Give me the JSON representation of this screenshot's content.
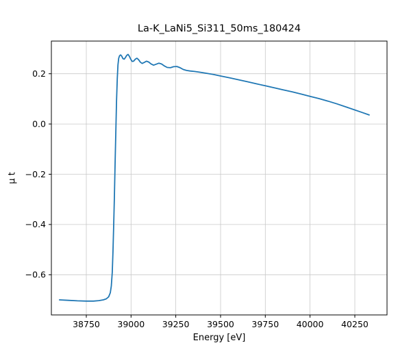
{
  "chart_data": {
    "type": "line",
    "title": "La-K_LaNi5_Si311_50ms_180424",
    "xlabel": "Energy [eV]",
    "ylabel": "μ t",
    "xlim": [
      38555,
      40430
    ],
    "ylim": [
      -0.76,
      0.33
    ],
    "grid": true,
    "legend": "none",
    "line_color": "#1f77b4",
    "background_color": "#ffffff",
    "grid_color": "#c8c8c8",
    "xticks": [
      {
        "v": 38750,
        "label": "38750"
      },
      {
        "v": 39000,
        "label": "39000"
      },
      {
        "v": 39250,
        "label": "39250"
      },
      {
        "v": 39500,
        "label": "39500"
      },
      {
        "v": 39750,
        "label": "39750"
      },
      {
        "v": 40000,
        "label": "40000"
      },
      {
        "v": 40250,
        "label": "40250"
      }
    ],
    "yticks": [
      {
        "v": 0.2,
        "label": "0.2"
      },
      {
        "v": 0.0,
        "label": "0.0"
      },
      {
        "v": -0.2,
        "label": "−0.2"
      },
      {
        "v": -0.4,
        "label": "−0.4"
      },
      {
        "v": -0.6,
        "label": "−0.6"
      }
    ],
    "series": [
      {
        "name": "mu_t_absorption",
        "points": [
          [
            38600,
            -0.7
          ],
          [
            38650,
            -0.702
          ],
          [
            38700,
            -0.704
          ],
          [
            38750,
            -0.705
          ],
          [
            38790,
            -0.705
          ],
          [
            38820,
            -0.703
          ],
          [
            38845,
            -0.7
          ],
          [
            38862,
            -0.696
          ],
          [
            38875,
            -0.688
          ],
          [
            38884,
            -0.672
          ],
          [
            38890,
            -0.645
          ],
          [
            38895,
            -0.59
          ],
          [
            38899,
            -0.51
          ],
          [
            38903,
            -0.41
          ],
          [
            38907,
            -0.29
          ],
          [
            38911,
            -0.16
          ],
          [
            38915,
            -0.03
          ],
          [
            38919,
            0.09
          ],
          [
            38923,
            0.18
          ],
          [
            38927,
            0.235
          ],
          [
            38931,
            0.262
          ],
          [
            38936,
            0.272
          ],
          [
            38942,
            0.275
          ],
          [
            38948,
            0.27
          ],
          [
            38955,
            0.26
          ],
          [
            38962,
            0.258
          ],
          [
            38969,
            0.265
          ],
          [
            38976,
            0.273
          ],
          [
            38983,
            0.277
          ],
          [
            38990,
            0.27
          ],
          [
            38998,
            0.258
          ],
          [
            39006,
            0.249
          ],
          [
            39014,
            0.25
          ],
          [
            39024,
            0.258
          ],
          [
            39033,
            0.262
          ],
          [
            39042,
            0.256
          ],
          [
            39052,
            0.246
          ],
          [
            39062,
            0.241
          ],
          [
            39074,
            0.245
          ],
          [
            39086,
            0.25
          ],
          [
            39098,
            0.247
          ],
          [
            39112,
            0.239
          ],
          [
            39126,
            0.234
          ],
          [
            39140,
            0.238
          ],
          [
            39155,
            0.242
          ],
          [
            39170,
            0.239
          ],
          [
            39186,
            0.231
          ],
          [
            39202,
            0.225
          ],
          [
            39220,
            0.224
          ],
          [
            39238,
            0.228
          ],
          [
            39256,
            0.229
          ],
          [
            39274,
            0.224
          ],
          [
            39292,
            0.217
          ],
          [
            39310,
            0.213
          ],
          [
            39330,
            0.211
          ],
          [
            39355,
            0.209
          ],
          [
            39385,
            0.206
          ],
          [
            39420,
            0.202
          ],
          [
            39460,
            0.197
          ],
          [
            39500,
            0.191
          ],
          [
            39550,
            0.184
          ],
          [
            39600,
            0.176
          ],
          [
            39650,
            0.168
          ],
          [
            39700,
            0.16
          ],
          [
            39750,
            0.152
          ],
          [
            39800,
            0.144
          ],
          [
            39850,
            0.136
          ],
          [
            39900,
            0.128
          ],
          [
            39950,
            0.119
          ],
          [
            40000,
            0.11
          ],
          [
            40050,
            0.101
          ],
          [
            40100,
            0.091
          ],
          [
            40150,
            0.08
          ],
          [
            40200,
            0.068
          ],
          [
            40250,
            0.056
          ],
          [
            40290,
            0.046
          ],
          [
            40330,
            0.036
          ]
        ]
      }
    ]
  }
}
